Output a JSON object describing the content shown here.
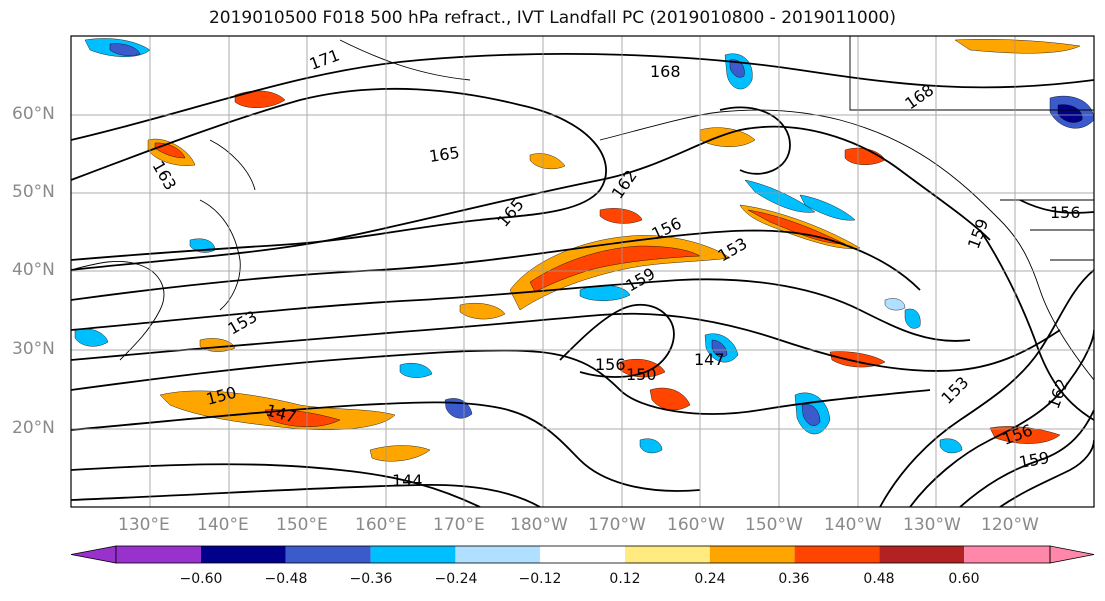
{
  "title": "2019010500 F018 500 hPa refract., IVT Landfall PC (2019010800 - 2019011000)",
  "lat_labels": [
    "60°N",
    "50°N",
    "40°N",
    "30°N",
    "20°N"
  ],
  "lon_labels": [
    "130°E",
    "140°E",
    "150°E",
    "160°E",
    "170°E",
    "180°W",
    "170°W",
    "160°W",
    "150°W",
    "140°W",
    "130°W",
    "120°W"
  ],
  "contour_labels": [
    "171",
    "168",
    "168",
    "165",
    "165",
    "163",
    "162",
    "156",
    "153",
    "159",
    "159",
    "156",
    "156",
    "153",
    "150",
    "150",
    "147",
    "147",
    "144",
    "153",
    "162",
    "159",
    "156"
  ],
  "colorbar": {
    "ticks": [
      "−0.60",
      "−0.48",
      "−0.36",
      "−0.24",
      "−0.12",
      "0.12",
      "0.24",
      "0.36",
      "0.48",
      "0.60"
    ],
    "colors": [
      "#9932cc",
      "#00008b",
      "#3b5bcc",
      "#00bfff",
      "#b0e0ff",
      "#ffffff",
      "#ffeb80",
      "#ffa500",
      "#ff4500",
      "#b22222",
      "#ff88aa"
    ]
  }
}
